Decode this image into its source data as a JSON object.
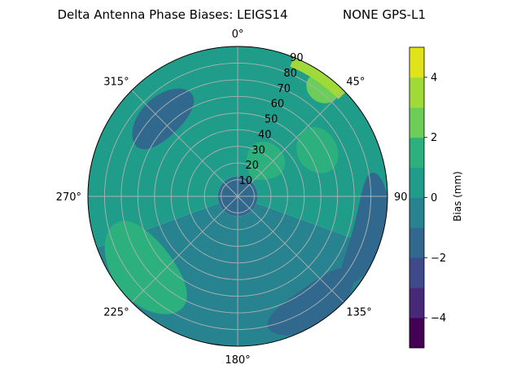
{
  "chart_data": {
    "type": "polar-contour",
    "title_left": "Delta Antenna Phase Biases: LEIGS14",
    "title_right": "NONE GPS-L1",
    "theta_zero": "top",
    "theta_direction": "clockwise",
    "angle_labels": [
      "0°",
      "45°",
      "90",
      "135°",
      "180°",
      "225°",
      "270°",
      "315°"
    ],
    "angles_deg": [
      0,
      45,
      90,
      135,
      180,
      225,
      270,
      315
    ],
    "radial_labels": [
      "10",
      "20",
      "30",
      "40",
      "50",
      "60",
      "70",
      "80",
      "90"
    ],
    "radial_values": [
      10,
      20,
      30,
      40,
      50,
      60,
      70,
      80,
      90
    ],
    "rlim": [
      0,
      90
    ],
    "grid": true,
    "colorbar": {
      "label": "Bias (mm)",
      "levels": [
        -5,
        -4,
        -3,
        -2,
        -1,
        0,
        1,
        2,
        3,
        4,
        5
      ],
      "colors": [
        "#440154",
        "#482979",
        "#3f4a8a",
        "#31688e",
        "#26838f",
        "#1f9d8a",
        "#2cb17e",
        "#6cce59",
        "#a0da39",
        "#dfe318"
      ],
      "tick_values": [
        -4,
        -2,
        0,
        2,
        4
      ],
      "tick_labels": [
        "−4",
        "−2",
        "0",
        "2",
        "4"
      ]
    },
    "regions": [
      {
        "level": -1.5,
        "shape": "annulus",
        "r": [
          0,
          12
        ]
      },
      {
        "level": -0.5,
        "shape": "sector",
        "r": [
          12,
          90
        ],
        "theta": [
          110,
          250
        ]
      },
      {
        "level": 0.5,
        "shape": "sector",
        "r": [
          12,
          90
        ],
        "theta": [
          250,
          360
        ]
      },
      {
        "level": 0.5,
        "shape": "sector",
        "r": [
          12,
          90
        ],
        "theta": [
          0,
          110
        ]
      },
      {
        "level": -1.5,
        "shape": "blob",
        "r": 66,
        "theta": 316,
        "dr": 12,
        "dtheta": 20
      },
      {
        "level": -1.5,
        "shape": "blob",
        "r": 82,
        "theta": 105,
        "dr": 10,
        "dtheta": 25
      },
      {
        "level": -1.5,
        "shape": "blob",
        "r": 80,
        "theta": 145,
        "dr": 12,
        "dtheta": 22
      },
      {
        "level": 1.5,
        "shape": "blob",
        "r": 72,
        "theta": 232,
        "dr": 18,
        "dtheta": 26
      },
      {
        "level": 1.5,
        "shape": "blob",
        "r": 55,
        "theta": 60,
        "dr": 12,
        "dtheta": 15
      },
      {
        "level": 1.5,
        "shape": "blob",
        "r": 26,
        "theta": 38,
        "dr": 12,
        "dtheta": 25
      },
      {
        "level": 2.5,
        "shape": "blob",
        "r": 82,
        "theta": 38,
        "dr": 8,
        "dtheta": 7
      },
      {
        "level": 3.5,
        "shape": "sector",
        "r": [
          84,
          90
        ],
        "theta": [
          22,
          46
        ]
      }
    ]
  }
}
